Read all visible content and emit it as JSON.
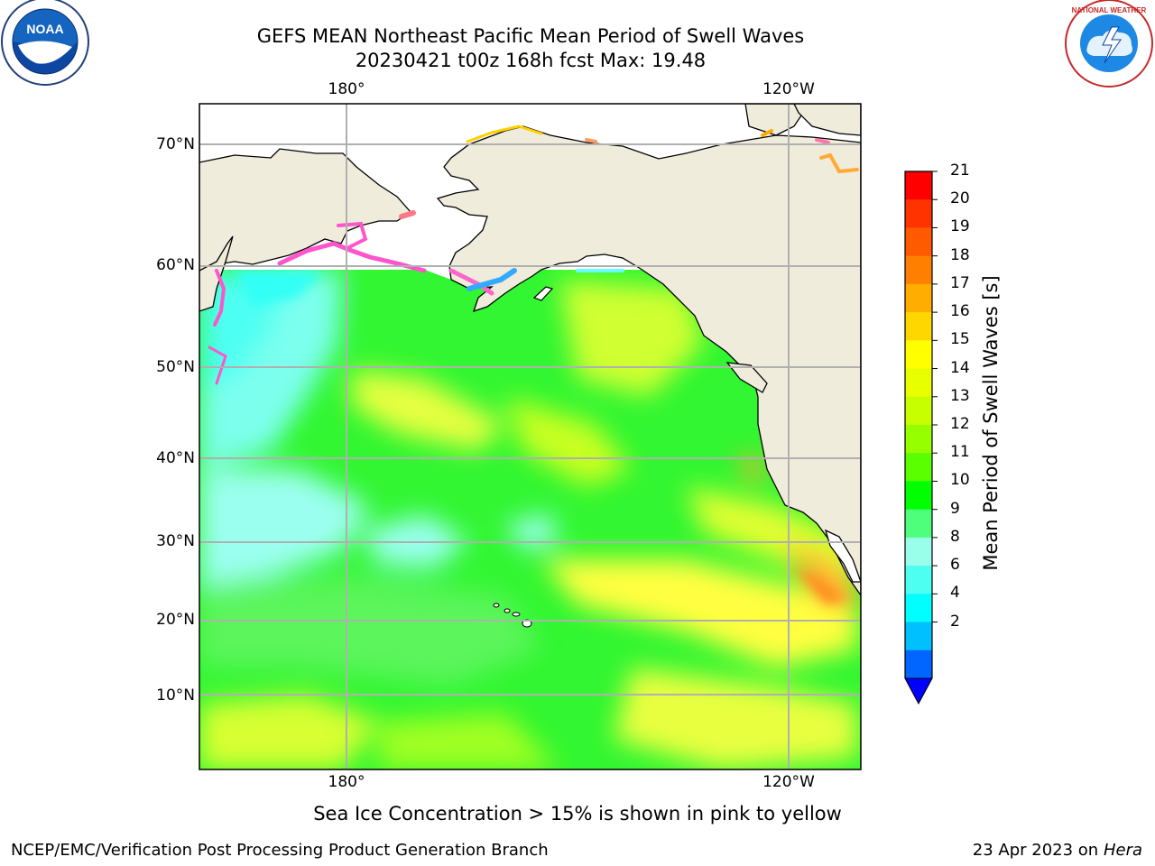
{
  "title": {
    "line1": "GEFS MEAN Northeast Pacific Mean Period of Swell Waves",
    "line2": "20230421 t00z 168h fcst   Max: 19.48"
  },
  "logos": {
    "noaa": {
      "icon": "noaa-logo",
      "text": "NOAA",
      "ring_text": "NATIONAL OCEANIC AND ATMOSPHERIC ADMINISTRATION · U.S. DEPARTMENT OF COMMERCE"
    },
    "nws": {
      "icon": "nws-logo",
      "ring_text": "NATIONAL WEATHER SERVICE"
    }
  },
  "map": {
    "region": "Northeast Pacific",
    "lon_labels_top": [
      "180°",
      "120°W"
    ],
    "lon_labels_bottom": [
      "180°",
      "120°W"
    ],
    "lat_labels": [
      "70°N",
      "60°N",
      "50°N",
      "40°N",
      "30°N",
      "20°N",
      "10°N"
    ],
    "grid": true,
    "land_color": "#efecdc",
    "ocean_default_color": "#31f631"
  },
  "colorbar": {
    "label": "Mean Period of Swell Waves [s]",
    "ticks": [
      "21",
      "20",
      "19",
      "18",
      "17",
      "16",
      "15",
      "14",
      "13",
      "12",
      "11",
      "10",
      "9",
      "8",
      "6",
      "4",
      "2"
    ],
    "colors_top_to_bottom": [
      "#ff0000",
      "#ff3300",
      "#ff5a00",
      "#ff8000",
      "#ffad00",
      "#ffd700",
      "#ffff00",
      "#e8ff00",
      "#c8ff00",
      "#96ff00",
      "#5aff00",
      "#00ff00",
      "#4dff7a",
      "#9affea",
      "#4dfff0",
      "#00ffff",
      "#00c0ff",
      "#0066ff"
    ],
    "under_color": "#0000ff"
  },
  "caption": "Sea Ice Concentration > 15% is shown in pink to yellow",
  "footer": {
    "left": "NCEP/EMC/Verification Post Processing Product Generation Branch",
    "right_prefix": "23 Apr 2023 on ",
    "right_host": "Hera"
  }
}
